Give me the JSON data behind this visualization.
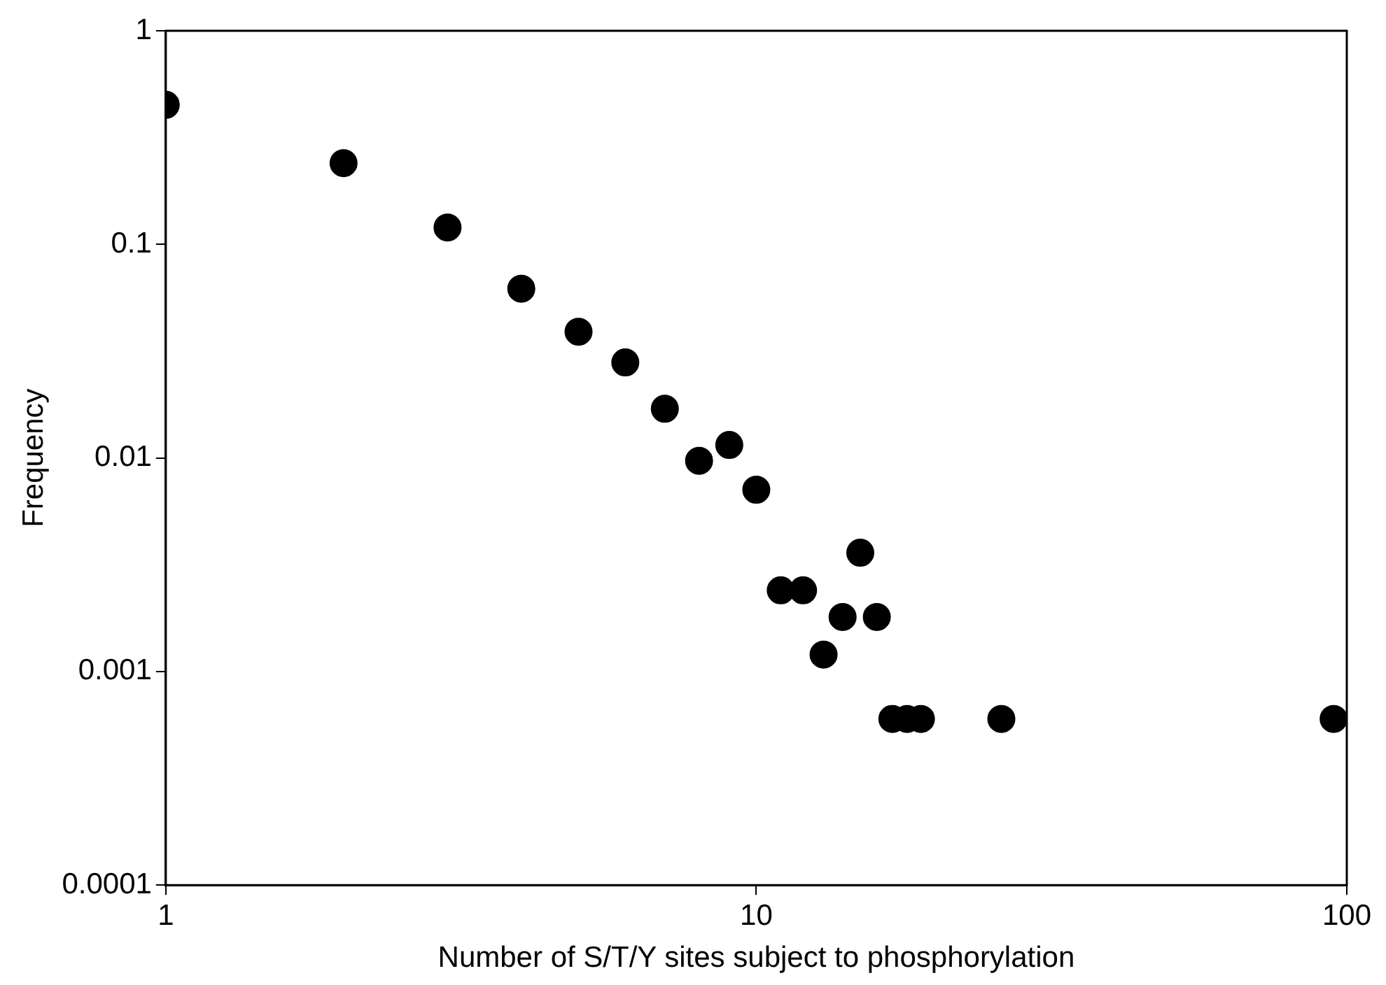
{
  "chart_data": {
    "type": "scatter",
    "xlabel": "Number of S/T/Y sites subject to phosphorylation",
    "ylabel": "Frequency",
    "log": "xy",
    "grid": false,
    "marker": "circle",
    "xlim": [
      1,
      100
    ],
    "xticks": [
      1,
      10,
      100
    ],
    "ylim": [
      0.0001,
      1
    ],
    "yticks": [
      0.0001,
      0.001,
      0.01,
      0.1,
      1
    ],
    "series": [
      {
        "color": "#000000",
        "x": [
          1,
          2,
          3,
          4,
          5,
          6,
          7,
          8,
          9,
          10,
          11,
          12,
          13,
          14,
          15,
          16,
          17,
          18,
          19,
          26,
          95
        ],
        "values": [
          0.45,
          0.24,
          0.12,
          0.062,
          0.039,
          0.028,
          0.017,
          0.0097,
          0.0115,
          0.0071,
          0.0024,
          0.0024,
          0.0012,
          0.0018,
          0.0036,
          0.0018,
          0.0006,
          0.0006,
          0.0006,
          0.0006,
          0.0006
        ]
      }
    ]
  }
}
